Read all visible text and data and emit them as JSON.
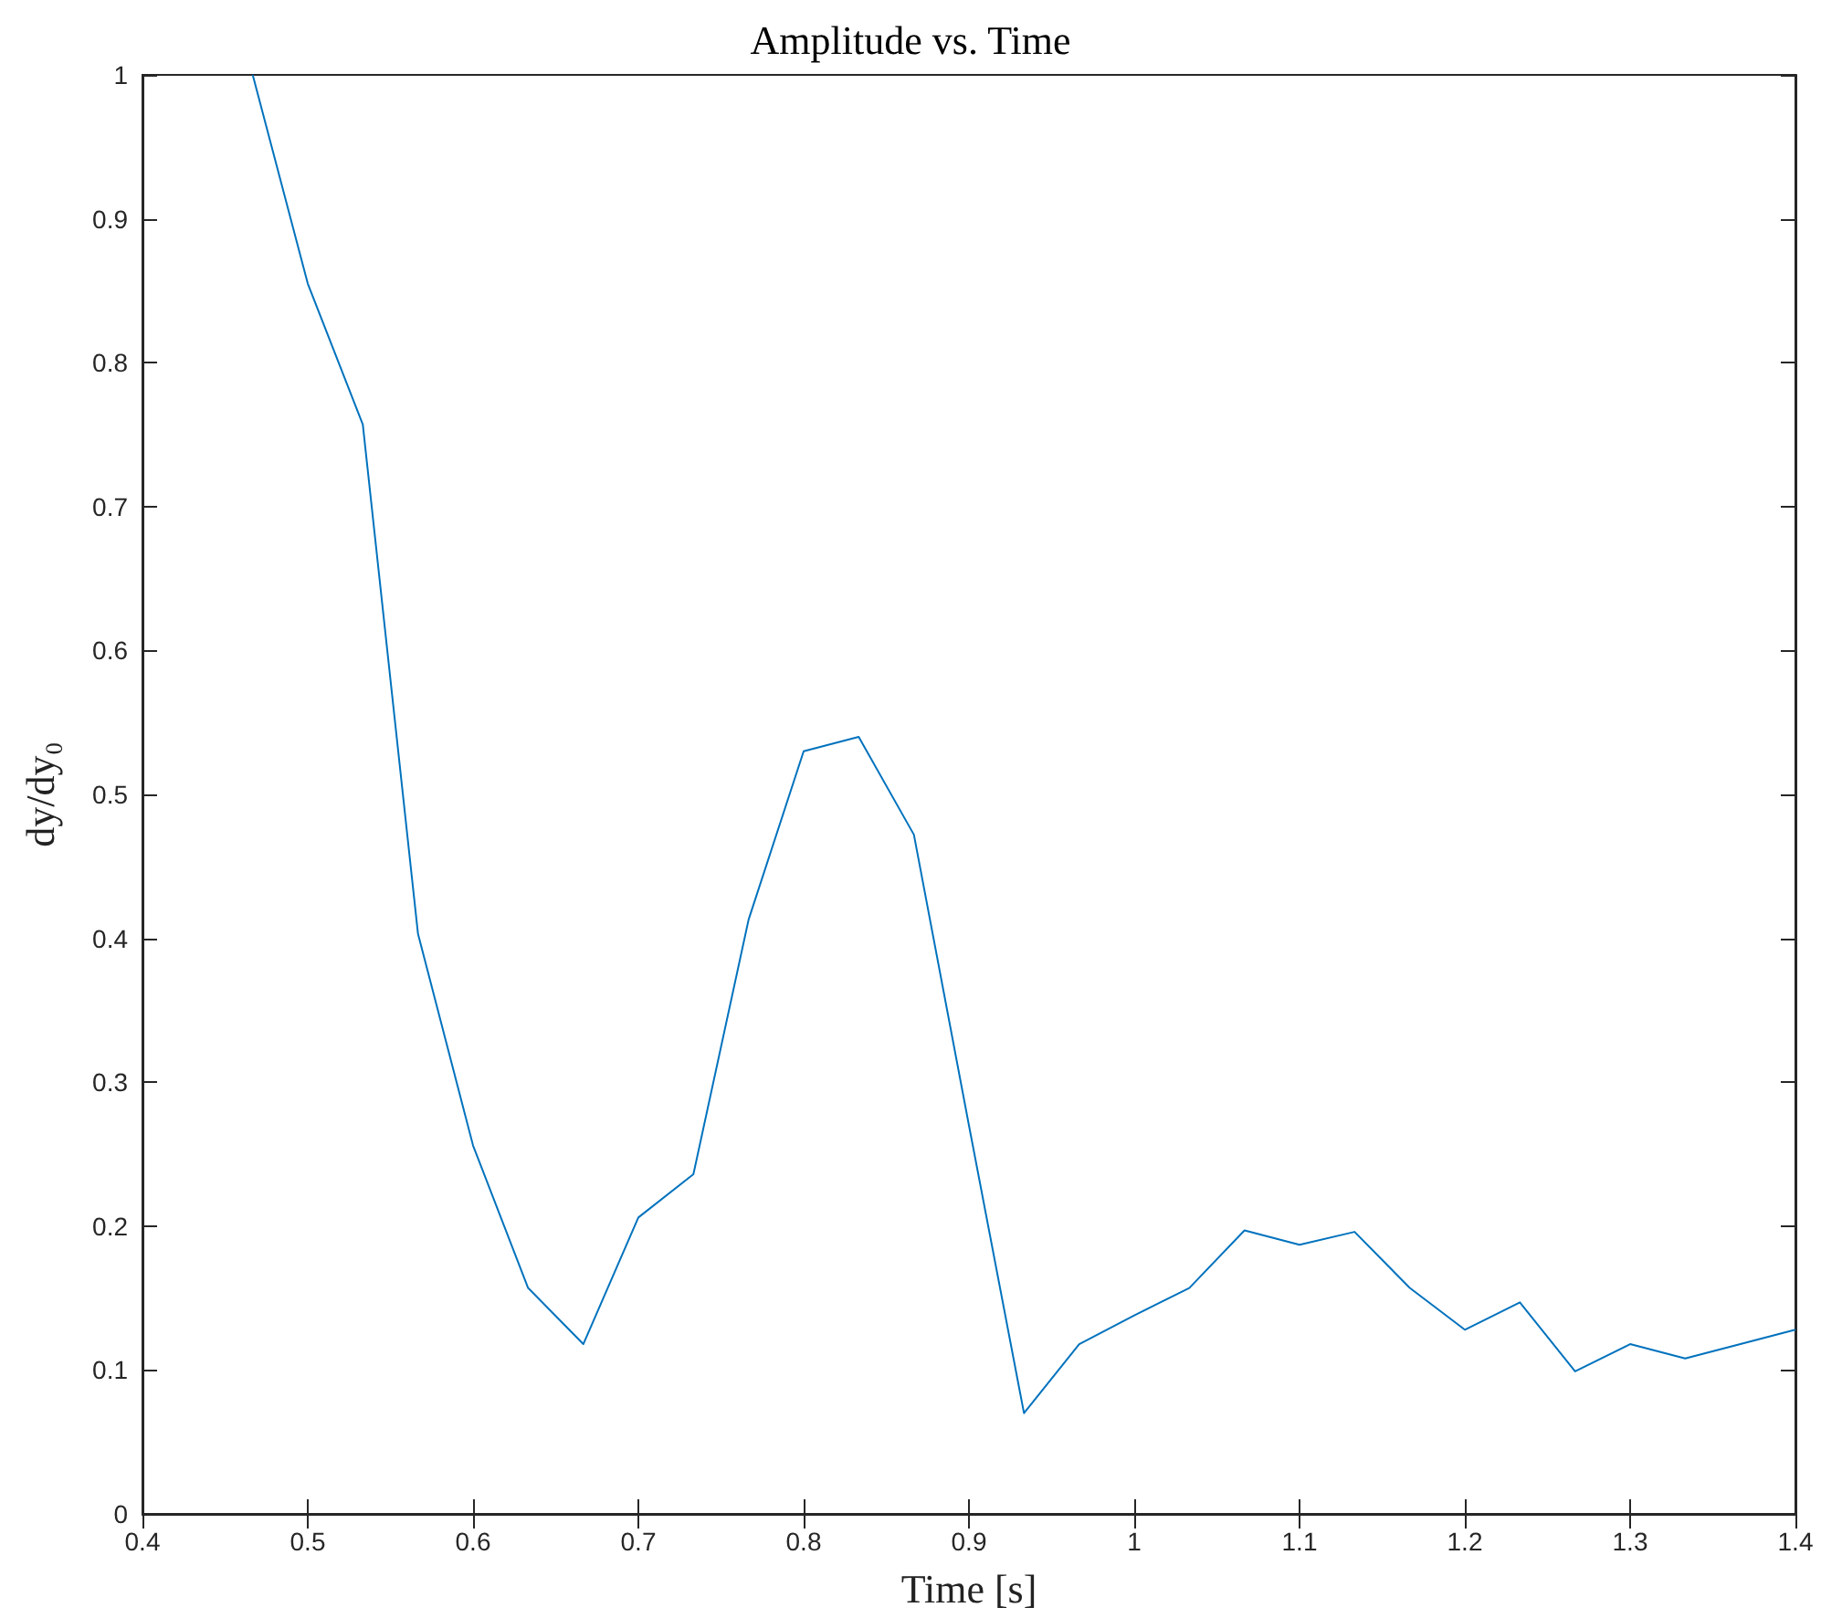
{
  "chart_data": {
    "type": "line",
    "title": "Amplitude vs. Time",
    "xlabel": "Time [s]",
    "ylabel": "dy/dy₀",
    "x": [
      0.4667,
      0.5,
      0.5333,
      0.5667,
      0.6,
      0.6333,
      0.6667,
      0.7,
      0.7333,
      0.7667,
      0.8,
      0.8333,
      0.8667,
      0.9,
      0.9333,
      0.9667,
      1.0,
      1.0333,
      1.0667,
      1.1,
      1.1333,
      1.1667,
      1.2,
      1.2333,
      1.2667,
      1.3,
      1.3333,
      1.3667,
      1.4
    ],
    "series": [
      {
        "color": "#0072bd",
        "values": [
          1.0,
          0.855,
          0.757,
          0.403,
          0.256,
          0.157,
          0.118,
          0.206,
          0.236,
          0.413,
          0.53,
          0.54,
          0.472,
          0.27,
          0.07,
          0.118,
          0.138,
          0.157,
          0.197,
          0.187,
          0.196,
          0.157,
          0.128,
          0.147,
          0.099,
          0.118,
          0.108,
          0.118,
          0.128
        ]
      }
    ],
    "xlim": [
      0.4,
      1.4
    ],
    "xticks": [
      0.4,
      0.5,
      0.6,
      0.7,
      0.8,
      0.9,
      1,
      1.1,
      1.2,
      1.3,
      1.4
    ],
    "ylim": [
      0,
      1
    ],
    "yticks": [
      0,
      0.1,
      0.2,
      0.3,
      0.4,
      0.5,
      0.6,
      0.7,
      0.8,
      0.9,
      1
    ],
    "grid": false,
    "marker": "none",
    "line_style": "solid"
  }
}
